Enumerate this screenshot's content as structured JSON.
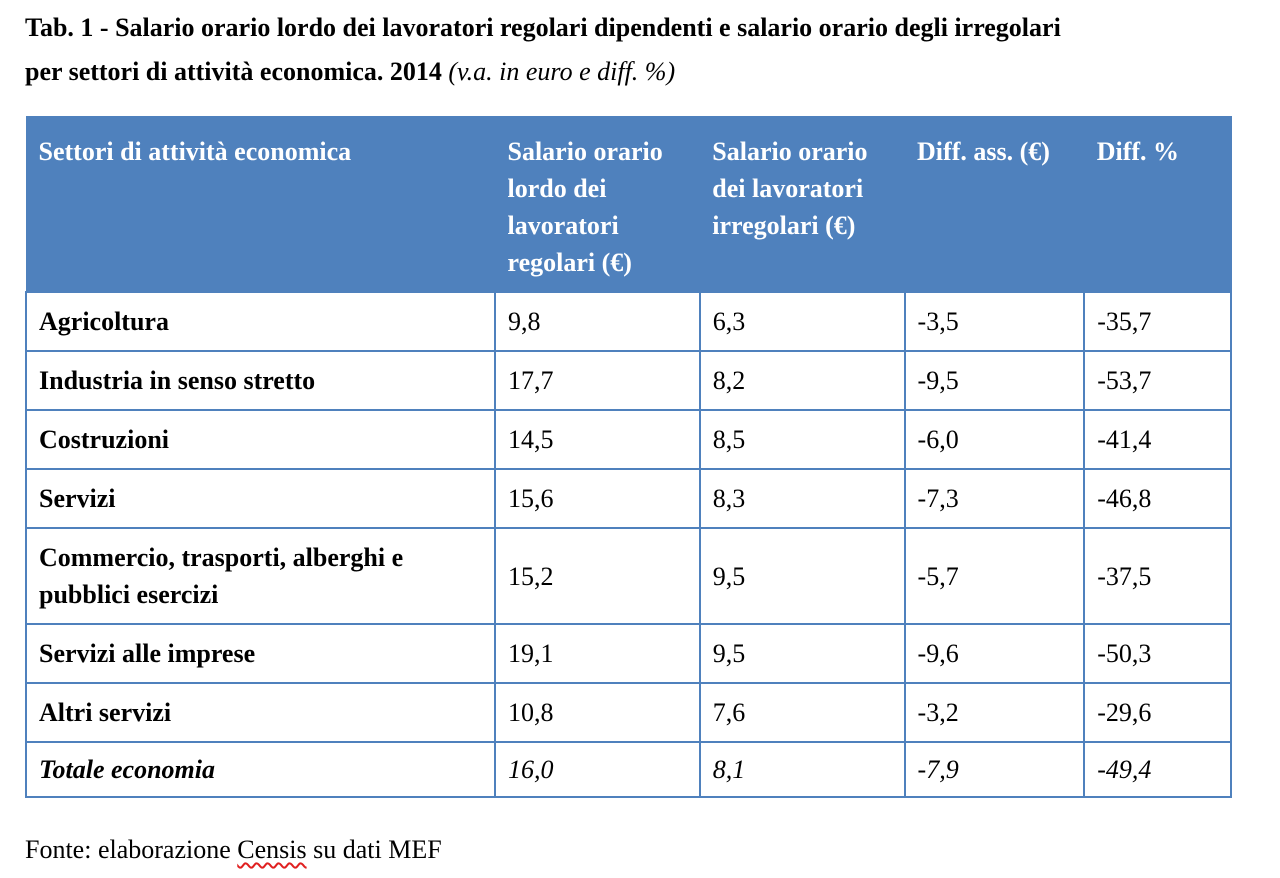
{
  "title": {
    "line1": "Tab. 1 - Salario orario lordo dei lavoratori regolari dipendenti e salario orario degli irregolari",
    "line2": "per settori di attività economica. 2014",
    "units": "(v.a. in euro e diff. %)"
  },
  "table": {
    "headers": [
      "Settori di attività economica",
      "Salario orario lordo dei lavoratori regolari (€)",
      "Salario orario dei lavoratori irregolari (€)",
      "Diff. ass. (€)",
      "Diff. %"
    ],
    "rows": [
      [
        "Agricoltura",
        "9,8",
        "6,3",
        "-3,5",
        "-35,7"
      ],
      [
        "Industria in senso stretto",
        "17,7",
        "8,2",
        "-9,5",
        "-53,7"
      ],
      [
        "Costruzioni",
        "14,5",
        "8,5",
        "-6,0",
        "-41,4"
      ],
      [
        "Servizi",
        "15,6",
        "8,3",
        "-7,3",
        "-46,8"
      ],
      [
        "Commercio, trasporti, alberghi e pubblici esercizi",
        "15,2",
        "9,5",
        "-5,7",
        "-37,5"
      ],
      [
        "Servizi alle imprese",
        "19,1",
        "9,5",
        "-9,6",
        "-50,3"
      ],
      [
        "Altri servizi",
        "10,8",
        "7,6",
        "-3,2",
        "-29,6"
      ]
    ],
    "total": [
      "Totale economia",
      "16,0",
      "8,1",
      "-7,9",
      "-49,4"
    ]
  },
  "source": {
    "prefix": "Fonte: elaborazione ",
    "highlight": "Censis",
    "suffix": " su dati MEF"
  },
  "colors": {
    "header_bg": "#4f81bd",
    "header_text": "#ffffff",
    "border": "#4f81bd",
    "spellcheck_underline": "#e02020"
  }
}
